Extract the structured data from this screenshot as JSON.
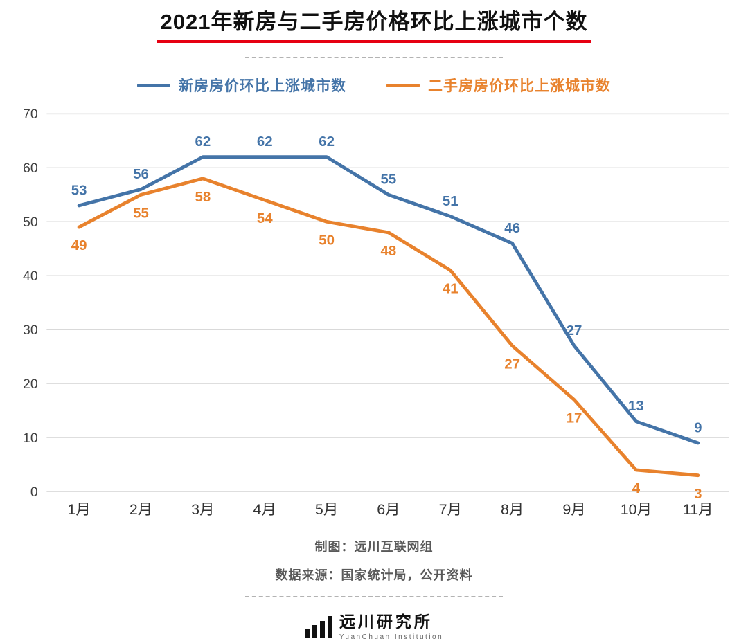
{
  "title": "2021年新房与二手房价格环比上涨城市个数",
  "legend": [
    {
      "label": "新房房价环比上涨城市数",
      "color": "#4474a8"
    },
    {
      "label": "二手房房价环比上涨城市数",
      "color": "#e8822d"
    }
  ],
  "chart_data": {
    "type": "line",
    "categories": [
      "1月",
      "2月",
      "3月",
      "4月",
      "5月",
      "6月",
      "7月",
      "8月",
      "9月",
      "10月",
      "11月"
    ],
    "series": [
      {
        "name": "新房房价环比上涨城市数",
        "color": "#4474a8",
        "values": [
          53,
          56,
          62,
          62,
          62,
          55,
          51,
          46,
          27,
          13,
          9
        ]
      },
      {
        "name": "二手房房价环比上涨城市数",
        "color": "#e8822d",
        "values": [
          49,
          55,
          58,
          54,
          50,
          48,
          41,
          27,
          17,
          4,
          3
        ]
      }
    ],
    "title": "2021年新房与二手房价格环比上涨城市个数",
    "xlabel": "",
    "ylabel": "",
    "ylim": [
      0,
      70
    ],
    "ytick_step": 10,
    "grid": true,
    "legend_position": "top"
  },
  "footer": {
    "credit": "制图：远川互联网组",
    "source": "数据来源：国家统计局，公开资料"
  },
  "logo": {
    "name": "远川研究所",
    "subname": "YuanChuan Institution"
  },
  "colors": {
    "title_underline": "#e60012",
    "grid": "#d9d9d9",
    "axis_text": "#404040"
  }
}
